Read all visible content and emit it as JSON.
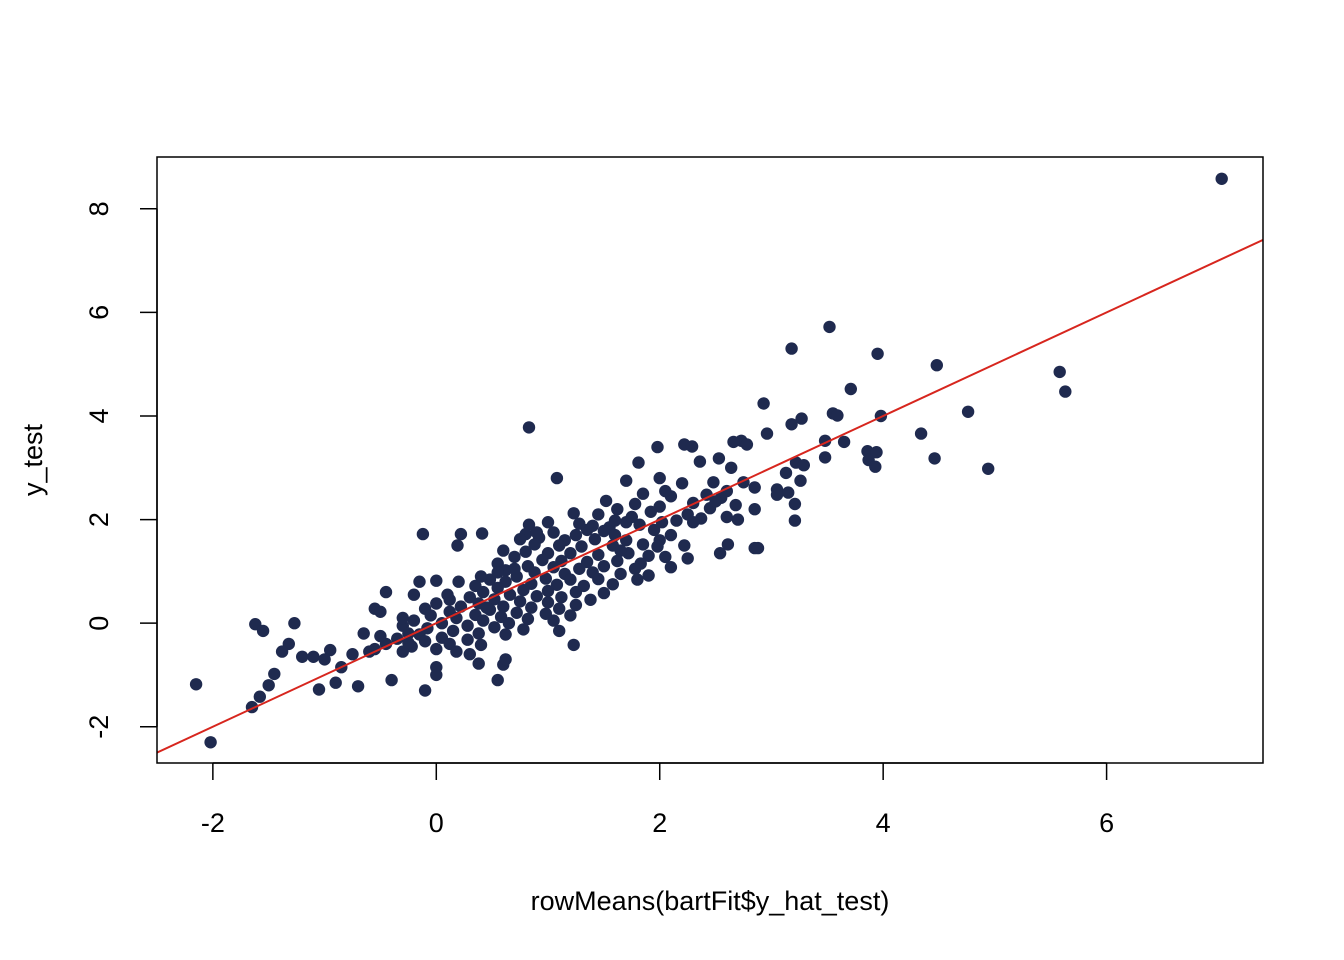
{
  "chart_data": {
    "type": "scatter",
    "title": "",
    "xlabel": "rowMeans(bartFit$y_hat_test)",
    "ylabel": "y_test",
    "xlim": [
      -2.5,
      7.4
    ],
    "ylim": [
      -2.7,
      9.0
    ],
    "x_ticks": [
      -2,
      0,
      2,
      4,
      6
    ],
    "y_ticks": [
      -2,
      0,
      2,
      4,
      6,
      8
    ],
    "grid": false,
    "legend": "none",
    "colors": {
      "points": "#1f2a4f",
      "line": "#d7261e",
      "axes": "#000000",
      "background": "#ffffff"
    },
    "reference_line": {
      "type": "y=x",
      "intercept": 0,
      "slope": 1
    },
    "series": [
      {
        "points": [
          [
            7.03,
            8.58
          ],
          [
            3.52,
            5.72
          ],
          [
            3.18,
            5.3
          ],
          [
            3.95,
            5.2
          ],
          [
            4.48,
            4.98
          ],
          [
            5.58,
            4.85
          ],
          [
            5.63,
            4.47
          ],
          [
            3.71,
            4.52
          ],
          [
            2.93,
            4.24
          ],
          [
            4.76,
            4.08
          ],
          [
            3.98,
            4.0
          ],
          [
            3.55,
            4.05
          ],
          [
            3.59,
            4.01
          ],
          [
            3.27,
            3.95
          ],
          [
            3.18,
            3.84
          ],
          [
            4.34,
            3.66
          ],
          [
            0.83,
            3.78
          ],
          [
            2.96,
            3.66
          ],
          [
            2.73,
            3.52
          ],
          [
            2.66,
            3.5
          ],
          [
            2.78,
            3.45
          ],
          [
            3.48,
            3.52
          ],
          [
            3.65,
            3.5
          ],
          [
            2.22,
            3.45
          ],
          [
            1.98,
            3.4
          ],
          [
            2.29,
            3.41
          ],
          [
            3.86,
            3.32
          ],
          [
            3.94,
            3.3
          ],
          [
            3.87,
            3.15
          ],
          [
            4.46,
            3.18
          ],
          [
            3.48,
            3.2
          ],
          [
            3.22,
            3.1
          ],
          [
            3.29,
            3.05
          ],
          [
            2.36,
            3.12
          ],
          [
            2.53,
            3.18
          ],
          [
            1.81,
            3.1
          ],
          [
            2.64,
            3.0
          ],
          [
            3.13,
            2.9
          ],
          [
            3.93,
            3.02
          ],
          [
            4.94,
            2.98
          ],
          [
            1.08,
            2.8
          ],
          [
            2.0,
            2.8
          ],
          [
            1.7,
            2.75
          ],
          [
            2.2,
            2.7
          ],
          [
            2.48,
            2.72
          ],
          [
            2.75,
            2.72
          ],
          [
            3.26,
            2.75
          ],
          [
            2.85,
            2.62
          ],
          [
            3.05,
            2.58
          ],
          [
            2.6,
            2.55
          ],
          [
            3.15,
            2.52
          ],
          [
            1.85,
            2.5
          ],
          [
            2.42,
            2.48
          ],
          [
            2.1,
            2.45
          ],
          [
            2.55,
            2.42
          ],
          [
            1.52,
            2.36
          ],
          [
            1.78,
            2.3
          ],
          [
            2.3,
            2.32
          ],
          [
            2.68,
            2.28
          ],
          [
            3.21,
            2.3
          ],
          [
            2.0,
            2.25
          ],
          [
            2.45,
            2.22
          ],
          [
            2.85,
            2.2
          ],
          [
            1.62,
            2.2
          ],
          [
            1.23,
            2.12
          ],
          [
            1.92,
            2.15
          ],
          [
            2.25,
            2.1
          ],
          [
            2.6,
            2.05
          ],
          [
            2.37,
            2.02
          ],
          [
            3.21,
            1.98
          ],
          [
            0.83,
            1.9
          ],
          [
            0.8,
            1.72
          ],
          [
            1.0,
            1.95
          ],
          [
            1.4,
            1.88
          ],
          [
            1.55,
            1.85
          ],
          [
            1.7,
            1.95
          ],
          [
            1.82,
            1.9
          ],
          [
            2.02,
            1.95
          ],
          [
            2.15,
            1.98
          ],
          [
            2.7,
            2.0
          ],
          [
            1.35,
            1.8
          ],
          [
            1.5,
            1.78
          ],
          [
            1.95,
            1.8
          ],
          [
            1.05,
            1.75
          ],
          [
            1.25,
            1.7
          ],
          [
            1.6,
            1.7
          ],
          [
            2.1,
            1.7
          ],
          [
            -0.12,
            1.72
          ],
          [
            0.22,
            1.72
          ],
          [
            0.41,
            1.73
          ],
          [
            0.75,
            1.62
          ],
          [
            0.92,
            1.65
          ],
          [
            1.15,
            1.6
          ],
          [
            1.42,
            1.62
          ],
          [
            1.7,
            1.6
          ],
          [
            2.0,
            1.6
          ],
          [
            1.85,
            1.52
          ],
          [
            0.19,
            1.5
          ],
          [
            0.88,
            1.52
          ],
          [
            1.1,
            1.5
          ],
          [
            1.3,
            1.48
          ],
          [
            1.58,
            1.5
          ],
          [
            1.98,
            1.48
          ],
          [
            2.22,
            1.5
          ],
          [
            2.61,
            1.52
          ],
          [
            2.85,
            1.45
          ],
          [
            2.88,
            1.45
          ],
          [
            2.54,
            1.35
          ],
          [
            0.6,
            1.4
          ],
          [
            0.8,
            1.38
          ],
          [
            1.0,
            1.35
          ],
          [
            1.2,
            1.35
          ],
          [
            1.45,
            1.32
          ],
          [
            1.72,
            1.35
          ],
          [
            1.9,
            1.3
          ],
          [
            2.05,
            1.28
          ],
          [
            2.25,
            1.25
          ],
          [
            0.7,
            1.28
          ],
          [
            0.95,
            1.22
          ],
          [
            1.12,
            1.2
          ],
          [
            1.35,
            1.18
          ],
          [
            1.62,
            1.2
          ],
          [
            1.83,
            1.15
          ],
          [
            0.55,
            1.15
          ],
          [
            0.82,
            1.1
          ],
          [
            1.05,
            1.08
          ],
          [
            1.28,
            1.05
          ],
          [
            1.5,
            1.1
          ],
          [
            1.78,
            1.05
          ],
          [
            2.1,
            1.08
          ],
          [
            0.62,
            1.02
          ],
          [
            0.88,
            0.98
          ],
          [
            1.15,
            0.95
          ],
          [
            1.4,
            0.98
          ],
          [
            1.65,
            0.95
          ],
          [
            1.9,
            0.92
          ],
          [
            0.72,
            0.9
          ],
          [
            0.98,
            0.86
          ],
          [
            1.2,
            0.84
          ],
          [
            1.45,
            0.85
          ],
          [
            1.8,
            0.84
          ],
          [
            0.48,
            0.84
          ],
          [
            0.62,
            0.8
          ],
          [
            0.85,
            0.76
          ],
          [
            1.08,
            0.74
          ],
          [
            1.32,
            0.72
          ],
          [
            1.58,
            0.75
          ],
          [
            0.35,
            0.72
          ],
          [
            0.55,
            0.68
          ],
          [
            0.78,
            0.64
          ],
          [
            1.0,
            0.62
          ],
          [
            1.25,
            0.6
          ],
          [
            1.5,
            0.58
          ],
          [
            0.42,
            0.6
          ],
          [
            0.66,
            0.55
          ],
          [
            0.9,
            0.52
          ],
          [
            1.12,
            0.5
          ],
          [
            1.38,
            0.45
          ],
          [
            0.3,
            0.5
          ],
          [
            0.52,
            0.46
          ],
          [
            0.75,
            0.42
          ],
          [
            1.0,
            0.4
          ],
          [
            1.25,
            0.35
          ],
          [
            0.12,
            0.45
          ],
          [
            0.38,
            0.38
          ],
          [
            0.6,
            0.32
          ],
          [
            0.85,
            0.3
          ],
          [
            1.1,
            0.28
          ],
          [
            0.0,
            0.38
          ],
          [
            0.22,
            0.32
          ],
          [
            0.48,
            0.26
          ],
          [
            0.72,
            0.2
          ],
          [
            0.98,
            0.18
          ],
          [
            1.2,
            0.15
          ],
          [
            -0.1,
            0.28
          ],
          [
            0.12,
            0.22
          ],
          [
            0.35,
            0.16
          ],
          [
            0.58,
            0.12
          ],
          [
            0.82,
            0.08
          ],
          [
            1.05,
            0.05
          ],
          [
            -0.05,
            0.15
          ],
          [
            0.18,
            0.1
          ],
          [
            0.42,
            0.05
          ],
          [
            0.65,
            0.0
          ],
          [
            -0.2,
            0.05
          ],
          [
            0.05,
            0.0
          ],
          [
            0.28,
            -0.05
          ],
          [
            0.52,
            -0.08
          ],
          [
            0.78,
            -0.12
          ],
          [
            -0.3,
            -0.05
          ],
          [
            -0.08,
            -0.1
          ],
          [
            0.15,
            -0.15
          ],
          [
            0.38,
            -0.2
          ],
          [
            0.62,
            -0.22
          ],
          [
            -0.15,
            -0.22
          ],
          [
            0.05,
            -0.28
          ],
          [
            0.28,
            -0.32
          ],
          [
            -0.35,
            -0.3
          ],
          [
            -0.1,
            -0.35
          ],
          [
            0.12,
            -0.4
          ],
          [
            -0.45,
            -0.4
          ],
          [
            -0.22,
            -0.45
          ],
          [
            0.0,
            -0.5
          ],
          [
            0.18,
            -0.55
          ],
          [
            0.4,
            -0.42
          ],
          [
            -0.55,
            -0.5
          ],
          [
            -0.3,
            -0.55
          ],
          [
            1.23,
            -0.42
          ],
          [
            1.1,
            -0.15
          ],
          [
            0.6,
            -0.8
          ],
          [
            0.38,
            -0.78
          ],
          [
            0.0,
            -0.85
          ],
          [
            0.0,
            -1.0
          ],
          [
            -0.1,
            -1.3
          ],
          [
            0.55,
            -1.1
          ],
          [
            0.62,
            -0.7
          ],
          [
            -0.4,
            -1.1
          ],
          [
            -0.7,
            -1.22
          ],
          [
            -0.9,
            -1.15
          ],
          [
            -1.05,
            -1.28
          ],
          [
            -0.85,
            -0.85
          ],
          [
            -0.75,
            -0.6
          ],
          [
            -0.95,
            -0.52
          ],
          [
            -1.1,
            -0.65
          ],
          [
            -0.6,
            -0.55
          ],
          [
            -0.5,
            -0.25
          ],
          [
            -0.25,
            -0.2
          ],
          [
            -0.55,
            0.28
          ],
          [
            -0.5,
            0.22
          ],
          [
            -0.45,
            0.6
          ],
          [
            -0.2,
            0.55
          ],
          [
            -0.15,
            0.8
          ],
          [
            0.0,
            0.82
          ],
          [
            0.2,
            0.8
          ],
          [
            0.1,
            0.55
          ],
          [
            -0.3,
            0.1
          ],
          [
            -0.65,
            -0.2
          ],
          [
            -1.0,
            -0.7
          ],
          [
            -1.2,
            -0.65
          ],
          [
            -1.32,
            -0.4
          ],
          [
            -1.38,
            -0.55
          ],
          [
            -1.27,
            -0.0
          ],
          [
            -1.62,
            -0.02
          ],
          [
            -1.55,
            -0.15
          ],
          [
            -1.45,
            -0.98
          ],
          [
            -1.5,
            -1.2
          ],
          [
            -1.58,
            -1.42
          ],
          [
            -1.65,
            -1.62
          ],
          [
            -2.15,
            -1.18
          ],
          [
            -2.02,
            -2.3
          ],
          [
            0.55,
            0.98
          ],
          [
            0.4,
            0.9
          ],
          [
            0.7,
            1.05
          ],
          [
            1.28,
            1.92
          ],
          [
            1.6,
            1.98
          ],
          [
            1.75,
            2.05
          ],
          [
            2.3,
            1.95
          ],
          [
            2.5,
            2.35
          ],
          [
            3.05,
            2.48
          ],
          [
            2.05,
            2.55
          ],
          [
            1.45,
            2.1
          ],
          [
            0.9,
            1.75
          ],
          [
            0.45,
            0.3
          ],
          [
            0.3,
            -0.6
          ],
          [
            -0.25,
            -0.38
          ],
          [
            1.65,
            1.4
          ]
        ]
      }
    ]
  }
}
